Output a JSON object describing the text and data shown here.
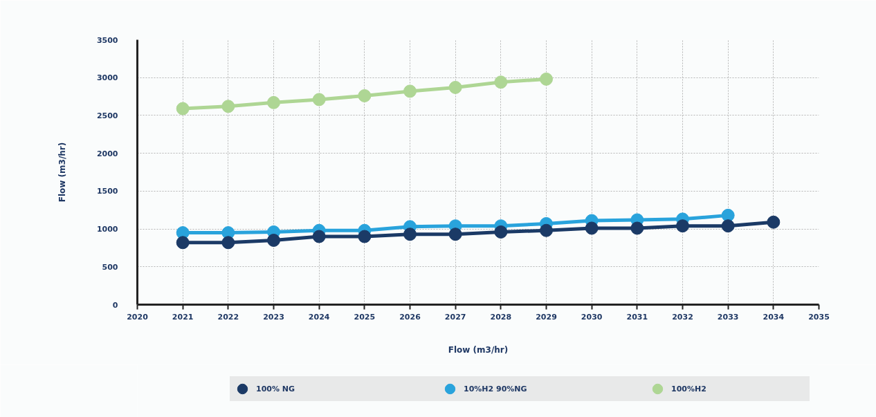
{
  "chart_data": {
    "type": "line",
    "xlabel": "Flow (m3/hr)",
    "ylabel": "Flow (m3/hr)",
    "x": [
      2021,
      2022,
      2023,
      2024,
      2025,
      2026,
      2027,
      2028,
      2029,
      2030,
      2031,
      2032,
      2033,
      2034
    ],
    "series": [
      {
        "name": "100% NG",
        "color": "#1b3a66",
        "values": [
          820,
          820,
          850,
          900,
          900,
          930,
          930,
          960,
          980,
          1010,
          1010,
          1040,
          1040,
          1090
        ]
      },
      {
        "name": "10%H2 90%NG",
        "color": "#29a3dc",
        "values": [
          950,
          950,
          960,
          980,
          980,
          1030,
          1040,
          1040,
          1070,
          1110,
          1120,
          1130,
          1180,
          null
        ]
      },
      {
        "name": "100%H2",
        "color": "#aed694",
        "values": [
          2590,
          2620,
          2670,
          2710,
          2760,
          2820,
          2870,
          2940,
          2980,
          null,
          null,
          null,
          null,
          null
        ]
      }
    ],
    "xlim": [
      2020,
      2035
    ],
    "ylim": [
      0,
      3500
    ],
    "xticks": [
      2020,
      2021,
      2022,
      2023,
      2024,
      2025,
      2026,
      2027,
      2028,
      2029,
      2030,
      2031,
      2032,
      2033,
      2034,
      2035
    ],
    "yticks": [
      0,
      500,
      1000,
      1500,
      2000,
      2500,
      3000,
      3500
    ],
    "grid": true,
    "legend": "bottom",
    "marker": "circle",
    "line_style": "solid"
  }
}
